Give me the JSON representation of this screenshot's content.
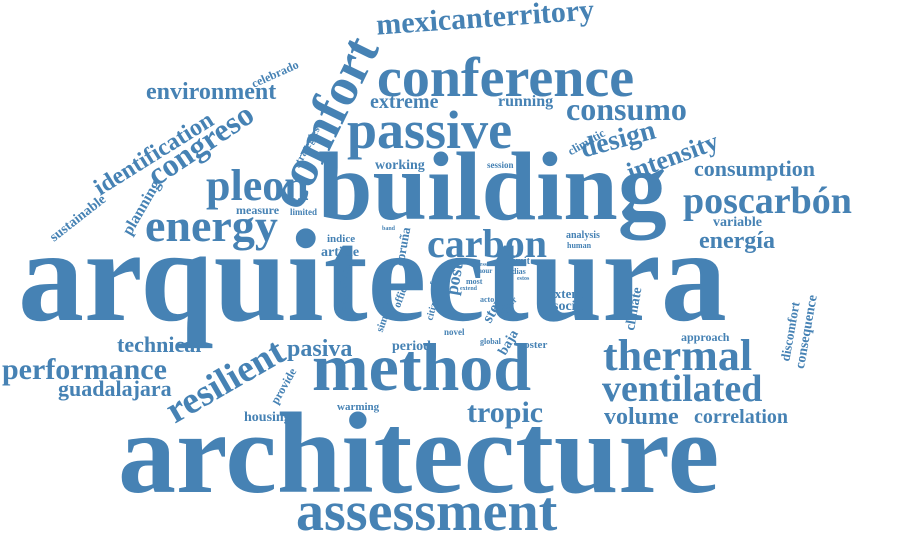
{
  "color": "#4682b4",
  "words": [
    "arquitectura",
    "architecture",
    "building",
    "method",
    "assessment",
    "conference",
    "passive",
    "comfort",
    "energy",
    "pleon",
    "carbon",
    "thermal",
    "ventilated",
    "poscarbón",
    "mexicanterritory",
    "congreso",
    "consumo",
    "consumption",
    "intensity",
    "design",
    "energía",
    "tropic",
    "resilient",
    "performance",
    "identification",
    "environment",
    "guadalajara",
    "technical",
    "extreme",
    "running",
    "volume",
    "correlation",
    "pasiva",
    "period",
    "sustainable",
    "planning",
    "strategies",
    "celebrado",
    "working",
    "session",
    "measure",
    "limited",
    "climatic",
    "variable",
    "indice",
    "coruña",
    "article",
    "analysis",
    "human",
    "count",
    "simple",
    "office",
    "free",
    "post",
    "limit",
    "dias",
    "citizen",
    "step",
    "acto",
    "upper",
    "extent",
    "social",
    "climate",
    "baja",
    "poster",
    "novel",
    "global",
    "approach",
    "discomfort",
    "consequence",
    "provide",
    "housing",
    "warming",
    "output",
    "band",
    "via",
    "most",
    "estos",
    "less",
    "hour",
    "extend"
  ]
}
